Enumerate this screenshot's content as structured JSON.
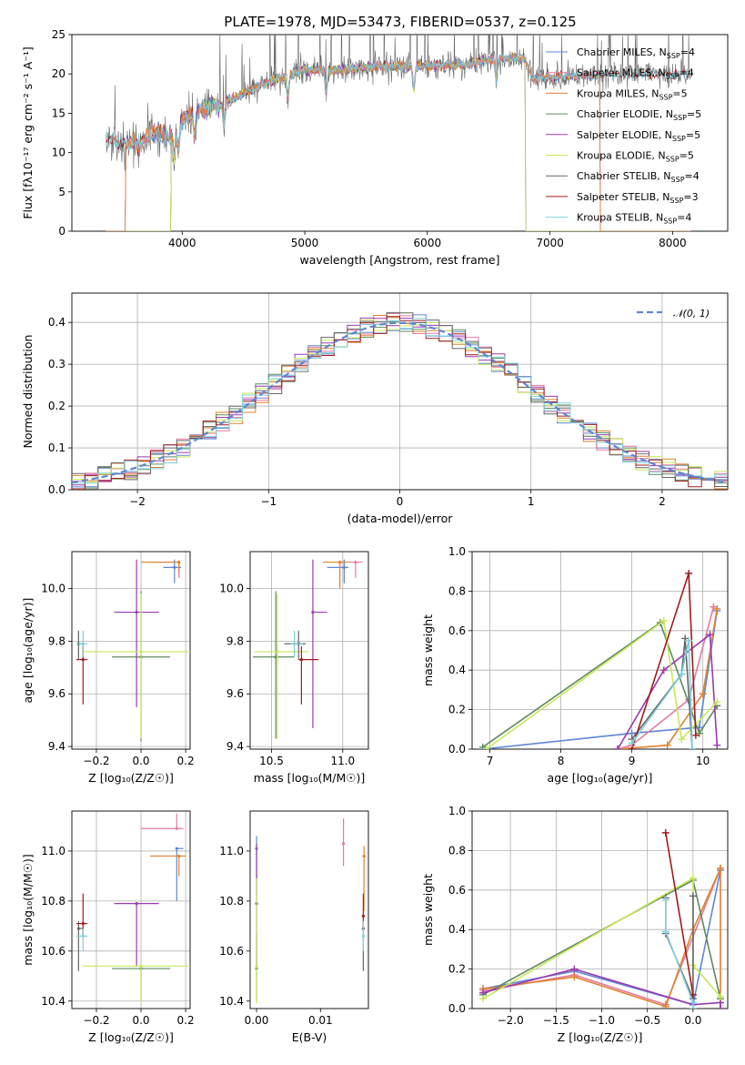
{
  "figure_title": "PLATE=1978, MJD=53473, FIBERID=0537, z=0.125",
  "colors": {
    "chabrier_miles": "#5f86d4",
    "salpeter_miles": "#e47a9f",
    "kroupa_miles": "#e0822e",
    "chabrier_elodie": "#5f8a5f",
    "salpeter_elodie": "#9a3ab0",
    "kroupa_elodie": "#c8e85a",
    "chabrier_stelib": "#666666",
    "salpeter_stelib": "#a01c1c",
    "kroupa_stelib": "#7fd0dc",
    "normal_curve": "#5f86d4"
  },
  "chart_data": [
    {
      "id": "spectrum",
      "type": "line",
      "xlabel": "wavelength [Angstrom, rest frame]",
      "ylabel": "Flux [fλ10⁻¹⁷ erg cm⁻² s⁻¹ A⁻¹]",
      "xlim": [
        3100,
        8450
      ],
      "ylim": [
        0,
        25
      ],
      "xticks": [
        "4000",
        "5000",
        "6000",
        "7000",
        "8000"
      ],
      "yticks": [
        "0",
        "5",
        "10",
        "15",
        "20",
        "25"
      ],
      "grid": false,
      "legend_position": "right",
      "legend": [
        {
          "label": "Chabrier MILES, N",
          "sub": "SSP",
          "suffix": "=4",
          "color_key": "chabrier_miles"
        },
        {
          "label": "Salpeter MILES, N",
          "sub": "SSP",
          "suffix": "=4",
          "color_key": "salpeter_miles"
        },
        {
          "label": "Kroupa MILES, N",
          "sub": "SSP",
          "suffix": "=5",
          "color_key": "kroupa_miles"
        },
        {
          "label": "Chabrier ELODIE, N",
          "sub": "SSP",
          "suffix": "=5",
          "color_key": "chabrier_elodie"
        },
        {
          "label": "Salpeter ELODIE, N",
          "sub": "SSP",
          "suffix": "=5",
          "color_key": "salpeter_elodie"
        },
        {
          "label": "Kroupa ELODIE, N",
          "sub": "SSP",
          "suffix": "=5",
          "color_key": "kroupa_elodie"
        },
        {
          "label": "Chabrier STELIB, N",
          "sub": "SSP",
          "suffix": "=4",
          "color_key": "chabrier_stelib"
        },
        {
          "label": "Salpeter STELIB, N",
          "sub": "SSP",
          "suffix": "=3",
          "color_key": "salpeter_stelib"
        },
        {
          "label": "Kroupa STELIB, N",
          "sub": "SSP",
          "suffix": "=4",
          "color_key": "kroupa_stelib"
        }
      ],
      "continuum": [
        [
          3380,
          12.0
        ],
        [
          3500,
          11.2
        ],
        [
          3650,
          11.0
        ],
        [
          3800,
          12.5
        ],
        [
          3900,
          12.0
        ],
        [
          4000,
          14.0
        ],
        [
          4150,
          15.5
        ],
        [
          4300,
          16.0
        ],
        [
          4500,
          17.5
        ],
        [
          4700,
          19.0
        ],
        [
          5000,
          20.5
        ],
        [
          5300,
          20.5
        ],
        [
          5600,
          21.0
        ],
        [
          6000,
          21.0
        ],
        [
          6300,
          21.2
        ],
        [
          6600,
          22.0
        ],
        [
          6800,
          22.0
        ],
        [
          6850,
          19.5
        ],
        [
          7000,
          19.5
        ],
        [
          7200,
          19.8
        ],
        [
          7500,
          19.8
        ],
        [
          7800,
          20.0
        ],
        [
          8000,
          20.0
        ],
        [
          8150,
          20.0
        ]
      ],
      "coverage": {
        "miles": [
          3540,
          7410
        ],
        "elodie": [
          3910,
          6800
        ]
      }
    },
    {
      "id": "residuals",
      "type": "histogram",
      "xlabel": "(data-model)/error",
      "ylabel": "Normed distribution",
      "xlim": [
        -2.5,
        2.5
      ],
      "ylim": [
        0,
        0.47
      ],
      "xticks": [
        "−2",
        "−1",
        "0",
        "1",
        "2"
      ],
      "yticks": [
        "0.0",
        "0.1",
        "0.2",
        "0.3",
        "0.4"
      ],
      "grid": true,
      "bin_width": 0.1,
      "normal_label": "𝒩(0, 1)",
      "legend_position": "upper right"
    },
    {
      "id": "age_vs_Z",
      "type": "errorbar",
      "xlabel": "Z [log₁₀(Z/Z☉)]",
      "ylabel": "age  [log₁₀(age/yr)]",
      "xlim": [
        -0.31,
        0.22
      ],
      "ylim": [
        9.39,
        10.14
      ],
      "xticks": [
        "−0.2",
        "0.0",
        "0.2"
      ],
      "yticks": [
        "9.4",
        "9.6",
        "9.8",
        "10.0"
      ],
      "grid": true,
      "points": [
        {
          "c": "chabrier_miles",
          "x": 0.15,
          "xerr": [
            0.05,
            0.03
          ],
          "y": 10.08,
          "yerr": [
            0.06,
            0.03
          ]
        },
        {
          "c": "salpeter_miles",
          "x": 0.17,
          "xerr": [
            0.13,
            0.0
          ],
          "y": 10.1,
          "yerr": [
            0.06,
            0.0
          ]
        },
        {
          "c": "kroupa_miles",
          "x": 0.17,
          "xerr": [
            0.17,
            0.0
          ],
          "y": 10.1,
          "yerr": [
            0.04,
            0.0
          ]
        },
        {
          "c": "chabrier_elodie",
          "x": 0.0,
          "xerr": [
            0.13,
            0.13
          ],
          "y": 9.74,
          "yerr": [
            0.32,
            0.25
          ]
        },
        {
          "c": "salpeter_elodie",
          "x": -0.02,
          "xerr": [
            0.1,
            0.1
          ],
          "y": 9.91,
          "yerr": [
            0.36,
            0.2
          ]
        },
        {
          "c": "kroupa_elodie",
          "x": 0.0,
          "xerr": [
            0.26,
            0.24
          ],
          "y": 9.76,
          "yerr": [
            0.33,
            0.22
          ]
        },
        {
          "c": "chabrier_stelib",
          "x": -0.28,
          "xerr": [
            0.0,
            0.02
          ],
          "y": 9.79,
          "yerr": [
            0.06,
            0.05
          ]
        },
        {
          "c": "salpeter_stelib",
          "x": -0.26,
          "xerr": [
            0.03,
            0.02
          ],
          "y": 9.73,
          "yerr": [
            0.17,
            0.05
          ]
        },
        {
          "c": "kroupa_stelib",
          "x": -0.26,
          "xerr": [
            0.03,
            0.02
          ],
          "y": 9.79,
          "yerr": [
            0.05,
            0.05
          ]
        }
      ]
    },
    {
      "id": "age_vs_mass",
      "type": "errorbar",
      "xlabel": "mass [log₁₀(M/M☉)]",
      "ylabel": "",
      "xlim": [
        10.35,
        11.18
      ],
      "ylim": [
        9.39,
        10.14
      ],
      "xticks": [
        "10.5",
        "11.0"
      ],
      "yticks": [
        "9.4",
        "9.6",
        "9.8",
        "10.0"
      ],
      "grid": true,
      "points": [
        {
          "c": "chabrier_miles",
          "x": 11.01,
          "xerr": [
            0.12,
            0.03
          ],
          "y": 10.08,
          "yerr": [
            0.06,
            0.03
          ]
        },
        {
          "c": "salpeter_miles",
          "x": 11.09,
          "xerr": [
            0.08,
            0.05
          ],
          "y": 10.1,
          "yerr": [
            0.06,
            0.0
          ]
        },
        {
          "c": "kroupa_miles",
          "x": 10.98,
          "xerr": [
            0.12,
            0.05
          ],
          "y": 10.1,
          "yerr": [
            0.1,
            0.0
          ]
        },
        {
          "c": "chabrier_elodie",
          "x": 10.53,
          "xerr": [
            0.16,
            0.13
          ],
          "y": 9.74,
          "yerr": [
            0.31,
            0.25
          ]
        },
        {
          "c": "salpeter_elodie",
          "x": 10.79,
          "xerr": [
            0.0,
            0.1
          ],
          "y": 9.91,
          "yerr": [
            0.44,
            0.2
          ]
        },
        {
          "c": "kroupa_elodie",
          "x": 10.54,
          "xerr": [
            0.16,
            0.22
          ],
          "y": 9.76,
          "yerr": [
            0.33,
            0.22
          ]
        },
        {
          "c": "chabrier_stelib",
          "x": 10.69,
          "xerr": [
            0.1,
            0.05
          ],
          "y": 9.79,
          "yerr": [
            0.06,
            0.05
          ]
        },
        {
          "c": "salpeter_stelib",
          "x": 10.71,
          "xerr": [
            0.02,
            0.12
          ],
          "y": 9.73,
          "yerr": [
            0.17,
            0.05
          ]
        },
        {
          "c": "kroupa_stelib",
          "x": 10.66,
          "xerr": [
            0.03,
            0.06
          ],
          "y": 9.79,
          "yerr": [
            0.05,
            0.05
          ]
        }
      ]
    },
    {
      "id": "weight_vs_age",
      "type": "line",
      "xlabel": "age  [log₁₀(age/yr)]",
      "ylabel": "mass weight",
      "xlim": [
        6.75,
        10.35
      ],
      "ylim": [
        0,
        1
      ],
      "xticks": [
        "7",
        "8",
        "9",
        "10"
      ],
      "yticks": [
        "0.0",
        "0.2",
        "0.4",
        "0.6",
        "0.8",
        "1.0"
      ],
      "grid": true,
      "series": [
        {
          "c": "chabrier_miles",
          "x": [
            6.9,
            9.0,
            9.95,
            10.2
          ],
          "y": [
            0.0,
            0.08,
            0.11,
            0.7
          ]
        },
        {
          "c": "salpeter_miles",
          "x": [
            8.8,
            9.0,
            9.8,
            10.15
          ],
          "y": [
            0.0,
            0.02,
            0.25,
            0.72
          ]
        },
        {
          "c": "kroupa_miles",
          "x": [
            8.8,
            9.5,
            10.0,
            10.2
          ],
          "y": [
            0.0,
            0.02,
            0.28,
            0.71
          ]
        },
        {
          "c": "chabrier_elodie",
          "x": [
            6.9,
            9.4,
            9.95,
            10.2
          ],
          "y": [
            0.01,
            0.64,
            0.08,
            0.22
          ]
        },
        {
          "c": "salpeter_elodie",
          "x": [
            8.8,
            9.45,
            10.1,
            10.2
          ],
          "y": [
            0.0,
            0.4,
            0.58,
            0.02
          ]
        },
        {
          "c": "kroupa_elodie",
          "x": [
            6.95,
            9.45,
            9.7,
            10.2
          ],
          "y": [
            0.0,
            0.65,
            0.05,
            0.24
          ]
        },
        {
          "c": "chabrier_stelib",
          "x": [
            9.0,
            9.7,
            9.75,
            9.85
          ],
          "y": [
            0.05,
            0.38,
            0.56,
            0.0
          ]
        },
        {
          "c": "salpeter_stelib",
          "x": [
            9.0,
            9.8,
            9.9
          ],
          "y": [
            0.0,
            0.89,
            0.07
          ]
        },
        {
          "c": "kroupa_stelib",
          "x": [
            9.0,
            9.7,
            9.8,
            9.85
          ],
          "y": [
            0.03,
            0.38,
            0.55,
            0.0
          ]
        }
      ]
    },
    {
      "id": "mass_vs_Z",
      "type": "errorbar",
      "xlabel": "Z [log₁₀(Z/Z☉)]",
      "ylabel": "mass [log₁₀(M/M☉)]",
      "xlim": [
        -0.31,
        0.22
      ],
      "ylim": [
        10.37,
        11.16
      ],
      "xticks": [
        "−0.2",
        "0.0",
        "0.2"
      ],
      "yticks": [
        "10.4",
        "10.6",
        "10.8",
        "11.0"
      ],
      "grid": true,
      "points": [
        {
          "c": "chabrier_miles",
          "x": 0.16,
          "xerr": [
            0.0,
            0.03
          ],
          "y": 11.01,
          "yerr": [
            0.21,
            0.0
          ]
        },
        {
          "c": "salpeter_miles",
          "x": 0.16,
          "xerr": [
            0.16,
            0.03
          ],
          "y": 11.09,
          "yerr": [
            0.0,
            0.06
          ]
        },
        {
          "c": "kroupa_miles",
          "x": 0.17,
          "xerr": [
            0.13,
            0.03
          ],
          "y": 10.98,
          "yerr": [
            0.08,
            0.0
          ]
        },
        {
          "c": "chabrier_elodie",
          "x": 0.0,
          "xerr": [
            0.13,
            0.13
          ],
          "y": 10.53,
          "yerr": [
            0.13,
            0.0
          ]
        },
        {
          "c": "salpeter_elodie",
          "x": -0.02,
          "xerr": [
            0.1,
            0.1
          ],
          "y": 10.79,
          "yerr": [
            0.25,
            0.0
          ]
        },
        {
          "c": "kroupa_elodie",
          "x": 0.0,
          "xerr": [
            0.26,
            0.24
          ],
          "y": 10.54,
          "yerr": [
            0.15,
            0.0
          ]
        },
        {
          "c": "chabrier_stelib",
          "x": -0.28,
          "xerr": [
            0.0,
            0.02
          ],
          "y": 10.69,
          "yerr": [
            0.17,
            0.03
          ]
        },
        {
          "c": "salpeter_stelib",
          "x": -0.26,
          "xerr": [
            0.03,
            0.02
          ],
          "y": 10.71,
          "yerr": [
            0.05,
            0.12
          ]
        },
        {
          "c": "kroupa_stelib",
          "x": -0.26,
          "xerr": [
            0.03,
            0.02
          ],
          "y": 10.66,
          "yerr": [
            0.06,
            0.03
          ]
        }
      ]
    },
    {
      "id": "mass_vs_ebv",
      "type": "errorbar",
      "xlabel": "E(B-V)",
      "ylabel": "",
      "xlim": [
        -0.001,
        0.0175
      ],
      "ylim": [
        10.37,
        11.16
      ],
      "xticks": [
        "0.00",
        "0.01"
      ],
      "yticks": [
        "10.4",
        "10.6",
        "10.8",
        "11.0"
      ],
      "grid": false,
      "points": [
        {
          "c": "chabrier_miles",
          "x": 0.0,
          "y": 11.01,
          "yerr": [
            0.19,
            0.05
          ]
        },
        {
          "c": "salpeter_miles",
          "x": 0.0136,
          "y": 11.03,
          "yerr": [
            0.09,
            0.1
          ]
        },
        {
          "c": "kroupa_miles",
          "x": 0.0168,
          "y": 10.98,
          "yerr": [
            0.22,
            0.04
          ]
        },
        {
          "c": "chabrier_elodie",
          "x": 0.0,
          "y": 10.53,
          "yerr": [
            0.13,
            0.14
          ]
        },
        {
          "c": "salpeter_elodie",
          "x": 0.0,
          "y": 10.79,
          "yerr": [
            0.25,
            0.24
          ]
        },
        {
          "c": "kroupa_elodie",
          "x": 0.0,
          "y": 10.54,
          "yerr": [
            0.15,
            0.35
          ]
        },
        {
          "c": "chabrier_stelib",
          "x": 0.0167,
          "y": 10.69,
          "yerr": [
            0.17,
            0.03
          ]
        },
        {
          "c": "salpeter_stelib",
          "x": 0.0167,
          "y": 10.74,
          "yerr": [
            0.05,
            0.09
          ]
        },
        {
          "c": "kroupa_stelib",
          "x": 0.0167,
          "y": 10.66,
          "yerr": [
            0.06,
            0.06
          ]
        }
      ]
    },
    {
      "id": "weight_vs_Z",
      "type": "line",
      "xlabel": "Z [log₁₀(Z/Z☉)]",
      "ylabel": "mass weight",
      "xlim": [
        -2.42,
        0.38
      ],
      "ylim": [
        0,
        1
      ],
      "xticks": [
        "−2.0",
        "−1.5",
        "−1.0",
        "−0.5",
        "0.0"
      ],
      "yticks": [
        "0.0",
        "0.2",
        "0.4",
        "0.6",
        "0.8",
        "1.0"
      ],
      "grid": true,
      "series": [
        {
          "c": "chabrier_miles",
          "x": [
            -2.3,
            -1.3,
            0.0,
            0.3
          ],
          "y": [
            0.1,
            0.19,
            0.02,
            0.7
          ]
        },
        {
          "c": "salpeter_miles",
          "x": [
            -2.3,
            -1.3,
            -0.3,
            0.3
          ],
          "y": [
            0.09,
            0.17,
            0.02,
            0.71
          ]
        },
        {
          "c": "kroupa_miles",
          "x": [
            -2.3,
            -1.3,
            -0.3,
            0.0,
            0.3,
            0.3
          ],
          "y": [
            0.1,
            0.16,
            0.01,
            0.4,
            0.71,
            0.0
          ]
        },
        {
          "c": "chabrier_elodie",
          "x": [
            -2.3,
            0.0,
            0.3
          ],
          "y": [
            0.07,
            0.65,
            0.05
          ]
        },
        {
          "c": "salpeter_elodie",
          "x": [
            -2.3,
            -1.3,
            0.0,
            0.3,
            0.3
          ],
          "y": [
            0.08,
            0.2,
            0.02,
            0.03,
            0.0
          ]
        },
        {
          "c": "kroupa_elodie",
          "x": [
            -2.3,
            0.0,
            0.0,
            0.3
          ],
          "y": [
            0.05,
            0.66,
            0.22,
            0.06
          ]
        },
        {
          "c": "chabrier_stelib",
          "x": [
            -0.3,
            -0.3,
            0.0,
            0.0
          ],
          "y": [
            0.56,
            0.38,
            0.05,
            0.57
          ]
        },
        {
          "c": "salpeter_stelib",
          "x": [
            -0.3,
            0.0
          ],
          "y": [
            0.89,
            0.07
          ]
        },
        {
          "c": "kroupa_stelib",
          "x": [
            -0.3,
            -0.3,
            0.0,
            0.0
          ],
          "y": [
            0.55,
            0.39,
            0.03,
            0.0
          ]
        }
      ]
    }
  ]
}
